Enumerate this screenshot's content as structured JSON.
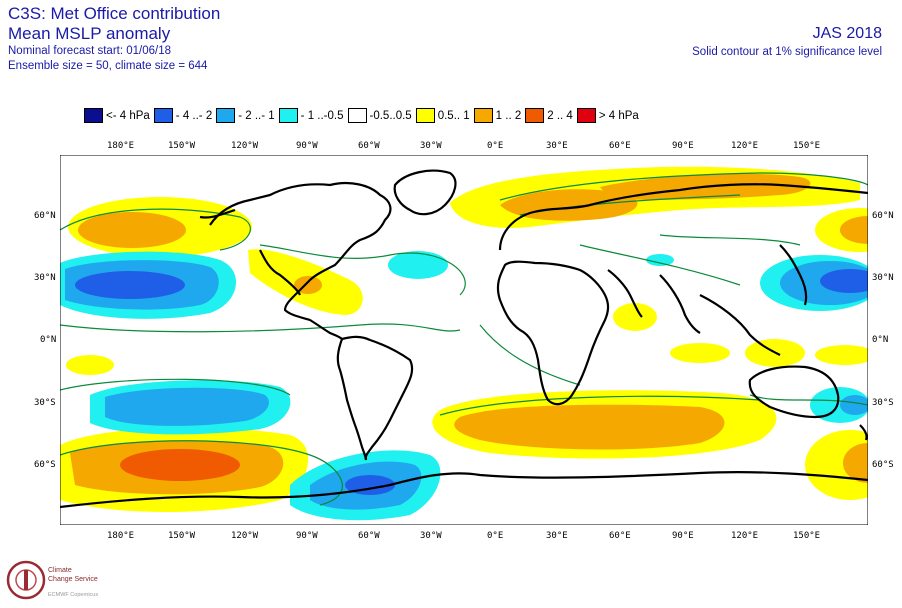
{
  "header": {
    "title": "C3S: Met Office contribution",
    "subtitle": "Mean MSLP anomaly",
    "forecast_start": "Nominal forecast start: 01/06/18",
    "ensemble": "Ensemble size = 50, climate size = 644",
    "season": "JAS 2018",
    "significance": "Solid contour at 1% significance level"
  },
  "legend": [
    {
      "label": "<- 4 hPa",
      "color": "#0b0e8e"
    },
    {
      "label": "- 4 ..- 2",
      "color": "#1f5fe8"
    },
    {
      "label": "- 2 ..- 1",
      "color": "#1fa8ee"
    },
    {
      "label": "- 1 ..-0.5",
      "color": "#20f0f0"
    },
    {
      "label": "-0.5..0.5",
      "color": "#ffffff"
    },
    {
      "label": "0.5.. 1",
      "color": "#ffff00"
    },
    {
      "label": "1 .. 2",
      "color": "#f5a800"
    },
    {
      "label": "2 .. 4",
      "color": "#f05a00"
    },
    {
      "label": "> 4 hPa",
      "color": "#e00010"
    }
  ],
  "axes": {
    "lon_labels": [
      "180°E",
      "150°W",
      "120°W",
      "90°W",
      "60°W",
      "30°W",
      "0°E",
      "30°E",
      "60°E",
      "90°E",
      "120°E",
      "150°E"
    ],
    "lat_labels": [
      "60°N",
      "30°N",
      "0°N",
      "30°S",
      "60°S"
    ]
  },
  "logo": {
    "name_line1": "Climate",
    "name_line2": "Change Service",
    "tagline": "ECMWF Copernicus"
  }
}
